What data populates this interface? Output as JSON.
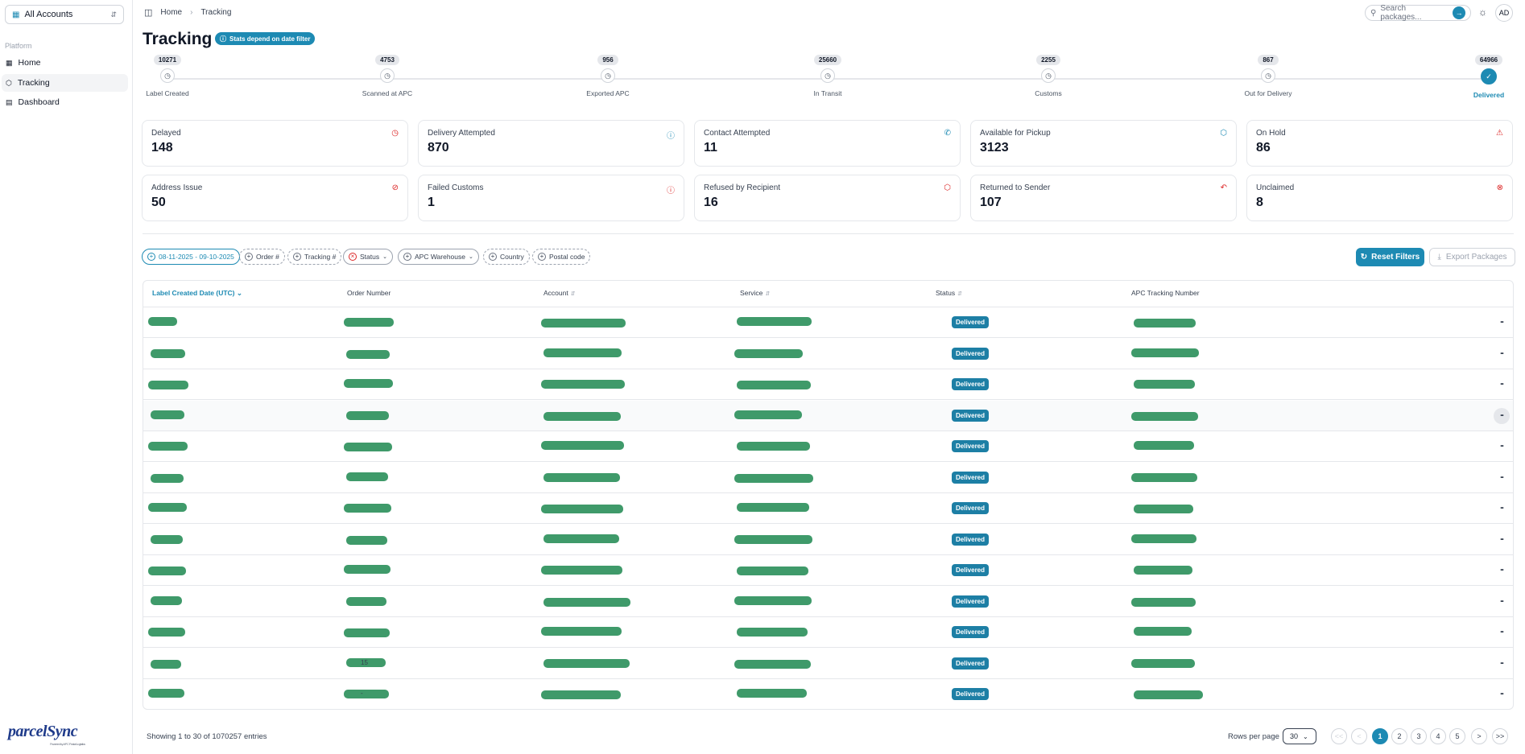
{
  "sidebar": {
    "account_selector": "All Accounts",
    "group_label": "Platform",
    "items": [
      {
        "label": "Home",
        "icon": "grid-icon"
      },
      {
        "label": "Tracking",
        "icon": "package-icon"
      },
      {
        "label": "Dashboard",
        "icon": "file-icon"
      }
    ],
    "logo_text": "parcelSync",
    "logo_tagline": "Powered by APC Postal Logistics"
  },
  "topbar": {
    "breadcrumb": [
      "Home",
      "Tracking"
    ],
    "search_placeholder": "Search packages...",
    "avatar_initials": "AD"
  },
  "page": {
    "title": "Tracking",
    "stats_note": "Stats depend on date filter"
  },
  "stepper": [
    {
      "label": "Label Created",
      "count": "10271",
      "done": false
    },
    {
      "label": "Scanned at APC",
      "count": "4753",
      "done": false
    },
    {
      "label": "Exported APC",
      "count": "956",
      "done": false
    },
    {
      "label": "In Transit",
      "count": "25660",
      "done": false
    },
    {
      "label": "Customs",
      "count": "2255",
      "done": false
    },
    {
      "label": "Out for Delivery",
      "count": "867",
      "done": false
    },
    {
      "label": "Delivered",
      "count": "64966",
      "done": true
    }
  ],
  "cards": [
    {
      "title": "Delayed",
      "value": "148",
      "icon": "clock-alert-icon",
      "color": "#dc2626"
    },
    {
      "title": "Delivery Attempted",
      "value": "870",
      "icon": "question-circle-icon",
      "color": "#1d8ab3"
    },
    {
      "title": "Contact Attempted",
      "value": "11",
      "icon": "phone-icon",
      "color": "#1d8ab3"
    },
    {
      "title": "Available for Pickup",
      "value": "3123",
      "icon": "package-pickup-icon",
      "color": "#1d8ab3"
    },
    {
      "title": "On Hold",
      "value": "86",
      "icon": "warning-triangle-icon",
      "color": "#dc2626"
    },
    {
      "title": "Address Issue",
      "value": "50",
      "icon": "map-pin-off-icon",
      "color": "#dc2626"
    },
    {
      "title": "Failed Customs",
      "value": "1",
      "icon": "alert-circle-icon",
      "color": "#dc2626"
    },
    {
      "title": "Refused by Recipient",
      "value": "16",
      "icon": "package-x-icon",
      "color": "#dc2626"
    },
    {
      "title": "Returned to Sender",
      "value": "107",
      "icon": "undo-icon",
      "color": "#dc2626"
    },
    {
      "title": "Unclaimed",
      "value": "8",
      "icon": "x-circle-icon",
      "color": "#dc2626"
    }
  ],
  "filters": {
    "chips": [
      "08-11-2025 - 09-10-2025",
      "Order #",
      "Tracking #",
      "Status",
      "APC Warehouse",
      "Country",
      "Postal code"
    ],
    "reset_label": "Reset Filters",
    "export_label": "Export Packages"
  },
  "table": {
    "columns": [
      "Label Created Date (UTC)",
      "Order Number",
      "Account",
      "Service",
      "Status",
      "APC Tracking Number"
    ],
    "rows": [
      {
        "status": "Delivered",
        "order_partial": ""
      },
      {
        "status": "Delivered",
        "order_partial": ""
      },
      {
        "status": "Delivered",
        "order_partial": ""
      },
      {
        "status": "Delivered",
        "order_partial": ""
      },
      {
        "status": "Delivered",
        "order_partial": ""
      },
      {
        "status": "Delivered",
        "order_partial": ""
      },
      {
        "status": "Delivered",
        "order_partial": ""
      },
      {
        "status": "Delivered",
        "order_partial": ""
      },
      {
        "status": "Delivered",
        "order_partial": ""
      },
      {
        "status": "Delivered",
        "order_partial": ""
      },
      {
        "status": "Delivered",
        "order_partial": ""
      },
      {
        "status": "Delivered",
        "order_partial": "15"
      },
      {
        "status": "Delivered",
        "order_partial": "-"
      }
    ]
  },
  "footer": {
    "showing": "Showing 1 to 30 of 1070257 entries",
    "rows_per_page_label": "Rows per page",
    "rows_per_page_value": "30",
    "pages": [
      "1",
      "2",
      "3",
      "4",
      "5"
    ],
    "current_page": "1",
    "first_label": "<<",
    "prev_label": "<",
    "next_label": ">",
    "last_label": ">>"
  },
  "colors": {
    "accent": "#1d8ab3",
    "danger": "#dc2626",
    "redaction": "#3f9a6a"
  }
}
